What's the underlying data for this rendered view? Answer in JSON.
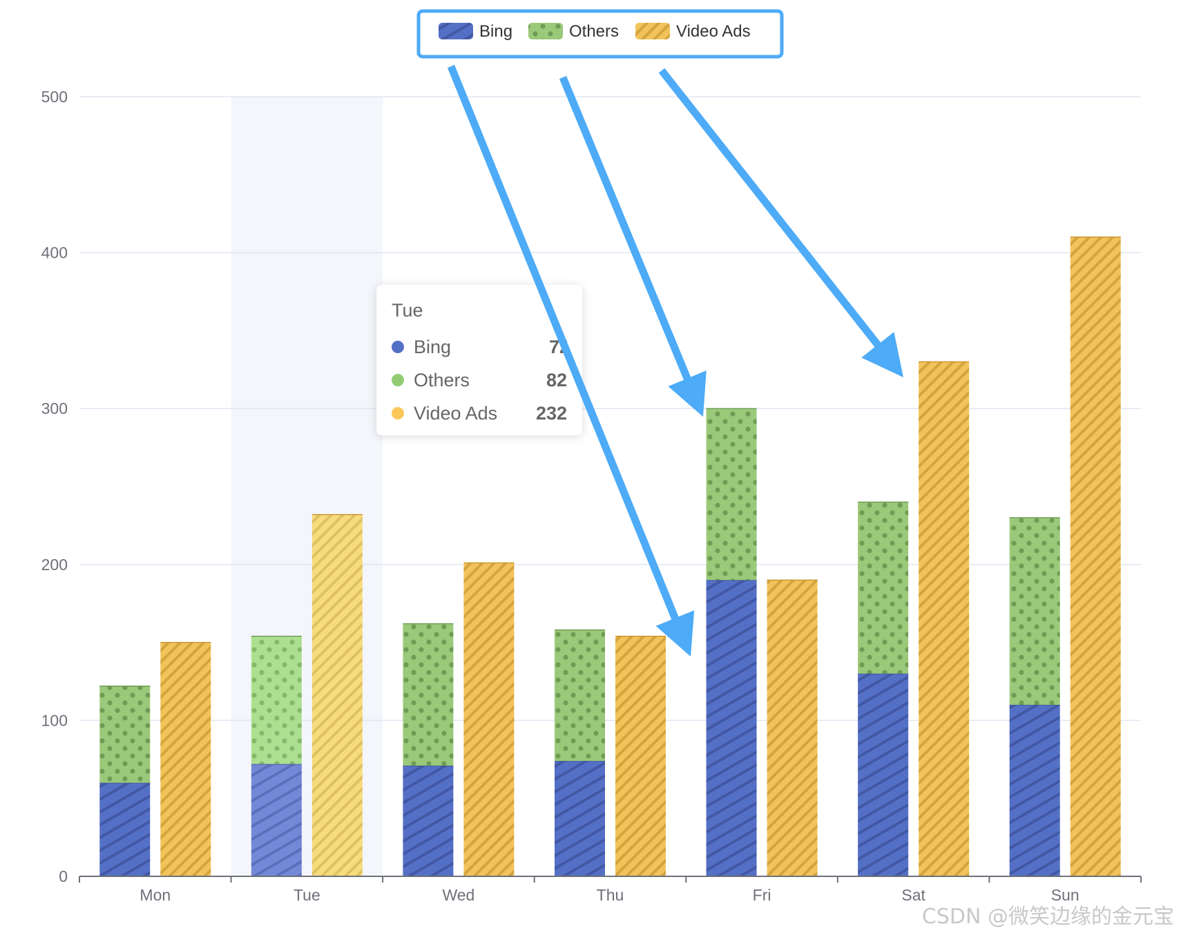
{
  "chart_data": {
    "type": "bar",
    "categories": [
      "Mon",
      "Tue",
      "Wed",
      "Thu",
      "Fri",
      "Sat",
      "Sun"
    ],
    "series": [
      {
        "name": "Bing",
        "stack": "search",
        "values": [
          60,
          72,
          71,
          74,
          190,
          130,
          110
        ],
        "color": "#5470c6",
        "pattern": "diagonal-stripes"
      },
      {
        "name": "Others",
        "stack": "search",
        "values": [
          62,
          82,
          91,
          84,
          110,
          110,
          120
        ],
        "color": "#91cc75",
        "pattern": "dots"
      },
      {
        "name": "Video Ads",
        "stack": "video",
        "values": [
          150,
          232,
          201,
          154,
          190,
          330,
          410
        ],
        "color": "#fac858",
        "pattern": "diagonal-stripes"
      }
    ],
    "yticks": [
      0,
      100,
      200,
      300,
      400,
      500
    ],
    "ylim": [
      0,
      500
    ],
    "grid": true,
    "legend_position": "top-center",
    "highlighted_category": "Tue"
  },
  "tooltip": {
    "title": "Tue",
    "rows": [
      {
        "name": "Bing",
        "value": "72",
        "color": "#5470c6"
      },
      {
        "name": "Others",
        "value": "82",
        "color": "#91cc75"
      },
      {
        "name": "Video Ads",
        "value": "232",
        "color": "#fac858"
      }
    ]
  },
  "annotation": {
    "color": "#4dabf7",
    "arrows_from_legend_to": [
      "Fri Bing",
      "Fri Others",
      "Sat Video Ads"
    ]
  },
  "watermark": "CSDN @微笑边缘的金元宝"
}
